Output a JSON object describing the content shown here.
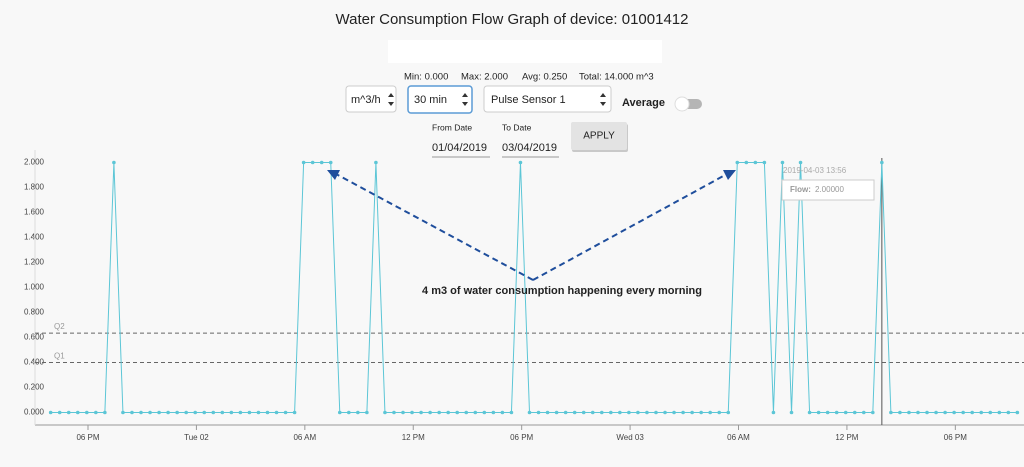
{
  "header": {
    "title": "Water Consumption Flow Graph of device: 01001412",
    "stats": [
      "Min: 0.000",
      "Max: 2.000",
      "Avg: 0.250",
      "Total: 14.000 m^3"
    ]
  },
  "controls": {
    "unit": "m^3/h",
    "interval": "30 min",
    "sensor": "Pulse Sensor 1",
    "average": "Average",
    "from_label": "From Date",
    "from_value": "01/04/2019",
    "to_label": "To Date",
    "to_value": "03/04/2019",
    "apply": "APPLY"
  },
  "tooltip": {
    "time": "2019-04-03 13:56",
    "label": "Flow:",
    "value": "2.00000"
  },
  "annotation": "4 m3 of water consumption happening every morning",
  "chart_data": {
    "type": "line",
    "x": [
      "2019-04-01 15:56",
      "2019-04-01 16:26",
      "2019-04-01 16:56",
      "2019-04-01 17:26",
      "2019-04-01 17:56",
      "2019-04-01 18:26",
      "2019-04-01 18:56",
      "2019-04-01 19:26",
      "2019-04-01 19:56",
      "2019-04-01 20:26",
      "2019-04-01 20:56",
      "2019-04-01 21:26",
      "2019-04-01 21:56",
      "2019-04-01 22:26",
      "2019-04-01 22:56",
      "2019-04-01 23:26",
      "2019-04-01 23:56",
      "2019-04-02 00:26",
      "2019-04-02 00:56",
      "2019-04-02 01:26",
      "2019-04-02 01:56",
      "2019-04-02 02:26",
      "2019-04-02 02:56",
      "2019-04-02 03:26",
      "2019-04-02 03:56",
      "2019-04-02 04:26",
      "2019-04-02 04:56",
      "2019-04-02 05:26",
      "2019-04-02 05:56",
      "2019-04-02 06:26",
      "2019-04-02 06:56",
      "2019-04-02 07:26",
      "2019-04-02 07:56",
      "2019-04-02 08:26",
      "2019-04-02 08:56",
      "2019-04-02 09:26",
      "2019-04-02 09:56",
      "2019-04-02 10:26",
      "2019-04-02 10:56",
      "2019-04-02 11:26",
      "2019-04-02 11:56",
      "2019-04-02 12:26",
      "2019-04-02 12:56",
      "2019-04-02 13:26",
      "2019-04-02 13:56",
      "2019-04-02 14:26",
      "2019-04-02 14:56",
      "2019-04-02 15:26",
      "2019-04-02 15:56",
      "2019-04-02 16:26",
      "2019-04-02 16:56",
      "2019-04-02 17:26",
      "2019-04-02 17:56",
      "2019-04-02 18:26",
      "2019-04-02 18:56",
      "2019-04-02 19:26",
      "2019-04-02 19:56",
      "2019-04-02 20:26",
      "2019-04-02 20:56",
      "2019-04-02 21:26",
      "2019-04-02 21:56",
      "2019-04-02 22:26",
      "2019-04-02 22:56",
      "2019-04-02 23:26",
      "2019-04-02 23:56",
      "2019-04-03 00:26",
      "2019-04-03 00:56",
      "2019-04-03 01:26",
      "2019-04-03 01:56",
      "2019-04-03 02:26",
      "2019-04-03 02:56",
      "2019-04-03 03:26",
      "2019-04-03 03:56",
      "2019-04-03 04:26",
      "2019-04-03 04:56",
      "2019-04-03 05:26",
      "2019-04-03 05:56",
      "2019-04-03 06:26",
      "2019-04-03 06:56",
      "2019-04-03 07:26",
      "2019-04-03 07:56",
      "2019-04-03 08:26",
      "2019-04-03 08:56",
      "2019-04-03 09:26",
      "2019-04-03 09:56",
      "2019-04-03 10:26",
      "2019-04-03 10:56",
      "2019-04-03 11:26",
      "2019-04-03 11:56",
      "2019-04-03 12:26",
      "2019-04-03 12:56",
      "2019-04-03 13:26",
      "2019-04-03 13:56",
      "2019-04-03 14:26",
      "2019-04-03 14:56",
      "2019-04-03 15:26",
      "2019-04-03 15:56",
      "2019-04-03 16:26",
      "2019-04-03 16:56",
      "2019-04-03 17:26",
      "2019-04-03 17:56",
      "2019-04-03 18:26",
      "2019-04-03 18:56",
      "2019-04-03 19:26",
      "2019-04-03 19:56",
      "2019-04-03 20:26",
      "2019-04-03 20:56",
      "2019-04-03 21:26"
    ],
    "series": [
      {
        "name": "Flow",
        "color": "#5cc6d6",
        "values": [
          0,
          0,
          0,
          0,
          0,
          0,
          0,
          2,
          0,
          0,
          0,
          0,
          0,
          0,
          0,
          0,
          0,
          0,
          0,
          0,
          0,
          0,
          0,
          0,
          0,
          0,
          0,
          0,
          2,
          2,
          2,
          2,
          0,
          0,
          0,
          0,
          2,
          0,
          0,
          0,
          0,
          0,
          0,
          0,
          0,
          0,
          0,
          0,
          0,
          0,
          0,
          0,
          2,
          0,
          0,
          0,
          0,
          0,
          0,
          0,
          0,
          0,
          0,
          0,
          0,
          0,
          0,
          0,
          0,
          0,
          0,
          0,
          0,
          0,
          0,
          0,
          2,
          2,
          2,
          2,
          0,
          2,
          0,
          2,
          0,
          0,
          0,
          0,
          0,
          0,
          0,
          0,
          2,
          0,
          0,
          0,
          0,
          0,
          0,
          0,
          0,
          0,
          0,
          0,
          0,
          0,
          0,
          0
        ]
      }
    ],
    "xlim": [
      "2019-04-01 15:04",
      "2019-04-03 21:48"
    ],
    "xticks": [
      {
        "value": "2019-04-01 18:00",
        "label": "06 PM"
      },
      {
        "value": "2019-04-02 00:00",
        "label": "Tue 02"
      },
      {
        "value": "2019-04-02 06:00",
        "label": "06 AM"
      },
      {
        "value": "2019-04-02 12:00",
        "label": "12 PM"
      },
      {
        "value": "2019-04-02 18:00",
        "label": "06 PM"
      },
      {
        "value": "2019-04-03 00:00",
        "label": "Wed 03"
      },
      {
        "value": "2019-04-03 06:00",
        "label": "06 AM"
      },
      {
        "value": "2019-04-03 12:00",
        "label": "12 PM"
      },
      {
        "value": "2019-04-03 18:00",
        "label": "06 PM"
      }
    ],
    "ylim": [
      -0.1,
      2.1
    ],
    "yticks": [
      {
        "value": 0,
        "label": "0.000"
      },
      {
        "value": 0.2,
        "label": "0.200"
      },
      {
        "value": 0.4,
        "label": "0.400"
      },
      {
        "value": 0.6,
        "label": "0.600"
      },
      {
        "value": 0.8,
        "label": "0.800"
      },
      {
        "value": 1,
        "label": "1.000"
      },
      {
        "value": 1.2,
        "label": "1.200"
      },
      {
        "value": 1.4,
        "label": "1.400"
      },
      {
        "value": 1.6,
        "label": "1.600"
      },
      {
        "value": 1.8,
        "label": "1.800"
      },
      {
        "value": 2,
        "label": "2.000"
      }
    ],
    "thresholds": [
      {
        "label": "Q2",
        "value": 0.635
      },
      {
        "label": "Q1",
        "value": 0.4
      }
    ],
    "hover_x": "2019-04-03 13:56"
  }
}
